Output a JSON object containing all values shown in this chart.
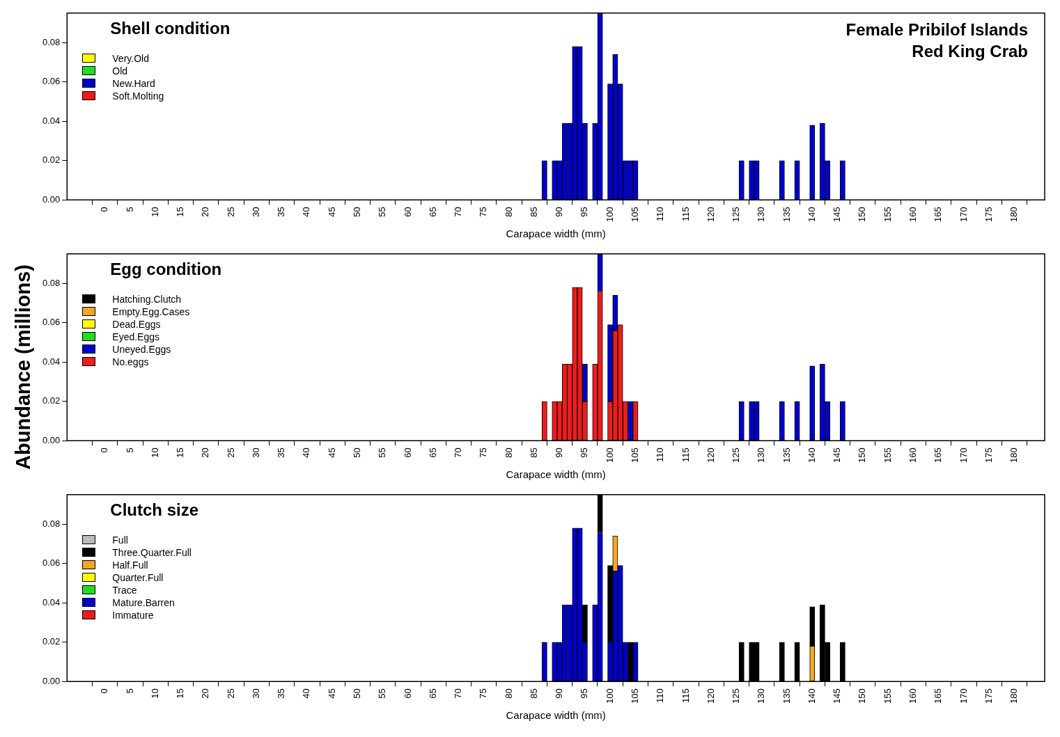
{
  "chart_data": [
    {
      "type": "bar",
      "title": "Shell condition",
      "xlabel": "Carapace width (mm)",
      "annotations": [
        "Female Pribilof Islands\nRed King Crab"
      ],
      "stacked": true,
      "legend": "top left",
      "grid": false,
      "x": [
        87,
        89,
        90,
        91,
        92,
        93,
        94,
        95,
        97,
        98,
        100,
        101,
        102,
        103,
        104,
        105,
        126,
        128,
        129,
        134,
        137,
        140,
        142,
        143,
        146
      ],
      "xlim": [
        -7.5,
        186
      ],
      "xticks": [
        0,
        5,
        10,
        15,
        20,
        25,
        30,
        35,
        40,
        45,
        50,
        55,
        60,
        65,
        70,
        75,
        80,
        85,
        90,
        95,
        100,
        105,
        110,
        115,
        120,
        125,
        130,
        135,
        140,
        145,
        150,
        155,
        160,
        165,
        170,
        175,
        180
      ],
      "ylim": [
        0,
        0.095
      ],
      "yticks": [
        {
          "value": 0,
          "label": "0.00"
        },
        {
          "value": 0.02,
          "label": "0.02"
        },
        {
          "value": 0.04,
          "label": "0.04"
        },
        {
          "value": 0.06,
          "label": "0.06"
        },
        {
          "value": 0.08,
          "label": "0.08"
        }
      ],
      "series": [
        {
          "name": "Soft.Molting",
          "color": "#ee1c1c",
          "values": [
            0,
            0,
            0,
            0,
            0,
            0,
            0,
            0,
            0,
            0,
            0,
            0,
            0,
            0,
            0,
            0,
            0,
            0,
            0,
            0,
            0,
            0,
            0,
            0,
            0
          ]
        },
        {
          "name": "New.Hard",
          "color": "#0000cd",
          "values": [
            0.02,
            0.02,
            0.02,
            0.039,
            0.039,
            0.078,
            0.078,
            0.039,
            0.039,
            0.095,
            0.059,
            0.074,
            0.059,
            0.02,
            0.02,
            0.02,
            0.02,
            0.02,
            0.02,
            0.02,
            0.02,
            0.038,
            0.039,
            0.02,
            0.02
          ]
        },
        {
          "name": "Old",
          "color": "#22dd22",
          "values": [
            0,
            0,
            0,
            0,
            0,
            0,
            0,
            0,
            0,
            0,
            0,
            0,
            0,
            0,
            0,
            0,
            0,
            0,
            0,
            0,
            0,
            0,
            0,
            0,
            0
          ]
        },
        {
          "name": "Very.Old",
          "color": "#ffff00",
          "values": [
            0,
            0,
            0,
            0,
            0,
            0,
            0,
            0,
            0,
            0,
            0,
            0,
            0,
            0,
            0,
            0,
            0,
            0,
            0,
            0,
            0,
            0,
            0,
            0,
            0
          ]
        }
      ]
    },
    {
      "type": "bar",
      "title": "Egg condition",
      "xlabel": "Carapace width (mm)",
      "ylabel": "Abundance (millions)",
      "stacked": true,
      "legend": "top left",
      "grid": false,
      "x": [
        87,
        89,
        90,
        91,
        92,
        93,
        94,
        95,
        97,
        98,
        100,
        101,
        102,
        103,
        104,
        105,
        126,
        128,
        129,
        134,
        137,
        140,
        142,
        143,
        146
      ],
      "xlim": [
        -7.5,
        186
      ],
      "xticks": [
        0,
        5,
        10,
        15,
        20,
        25,
        30,
        35,
        40,
        45,
        50,
        55,
        60,
        65,
        70,
        75,
        80,
        85,
        90,
        95,
        100,
        105,
        110,
        115,
        120,
        125,
        130,
        135,
        140,
        145,
        150,
        155,
        160,
        165,
        170,
        175,
        180
      ],
      "ylim": [
        0,
        0.095
      ],
      "yticks": [
        {
          "value": 0,
          "label": "0.00"
        },
        {
          "value": 0.02,
          "label": "0.02"
        },
        {
          "value": 0.04,
          "label": "0.04"
        },
        {
          "value": 0.06,
          "label": "0.06"
        },
        {
          "value": 0.08,
          "label": "0.08"
        }
      ],
      "series": [
        {
          "name": "No.eggs",
          "color": "#ee1c1c",
          "values": [
            0.02,
            0.02,
            0.02,
            0.039,
            0.039,
            0.078,
            0.078,
            0.02,
            0.039,
            0.076,
            0.02,
            0.056,
            0.059,
            0.02,
            0,
            0.02,
            0,
            0,
            0,
            0,
            0,
            0,
            0,
            0,
            0
          ]
        },
        {
          "name": "Uneyed.Eggs",
          "color": "#0000cd",
          "values": [
            0,
            0,
            0,
            0,
            0,
            0,
            0,
            0.019,
            0,
            0.019,
            0.039,
            0.018,
            0,
            0,
            0.02,
            0,
            0.02,
            0.02,
            0.02,
            0.02,
            0.02,
            0.038,
            0.039,
            0.02,
            0.02
          ]
        },
        {
          "name": "Eyed.Eggs",
          "color": "#22dd22",
          "values": [
            0,
            0,
            0,
            0,
            0,
            0,
            0,
            0,
            0,
            0,
            0,
            0,
            0,
            0,
            0,
            0,
            0,
            0,
            0,
            0,
            0,
            0,
            0,
            0,
            0
          ]
        },
        {
          "name": "Dead.Eggs",
          "color": "#ffff00",
          "values": [
            0,
            0,
            0,
            0,
            0,
            0,
            0,
            0,
            0,
            0,
            0,
            0,
            0,
            0,
            0,
            0,
            0,
            0,
            0,
            0,
            0,
            0,
            0,
            0,
            0
          ]
        },
        {
          "name": "Empty.Egg.Cases",
          "color": "#f5a623",
          "values": [
            0,
            0,
            0,
            0,
            0,
            0,
            0,
            0,
            0,
            0,
            0,
            0,
            0,
            0,
            0,
            0,
            0,
            0,
            0,
            0,
            0,
            0,
            0,
            0,
            0
          ]
        },
        {
          "name": "Hatching.Clutch",
          "color": "#000000",
          "values": [
            0,
            0,
            0,
            0,
            0,
            0,
            0,
            0,
            0,
            0,
            0,
            0,
            0,
            0,
            0,
            0,
            0,
            0,
            0,
            0,
            0,
            0,
            0,
            0,
            0
          ]
        }
      ]
    },
    {
      "type": "bar",
      "title": "Clutch size",
      "xlabel": "Carapace width (mm)",
      "stacked": true,
      "legend": "top left",
      "grid": false,
      "x": [
        87,
        89,
        90,
        91,
        92,
        93,
        94,
        95,
        97,
        98,
        100,
        101,
        102,
        103,
        104,
        105,
        126,
        128,
        129,
        134,
        137,
        140,
        142,
        143,
        146
      ],
      "xlim": [
        -7.5,
        186
      ],
      "xticks": [
        0,
        5,
        10,
        15,
        20,
        25,
        30,
        35,
        40,
        45,
        50,
        55,
        60,
        65,
        70,
        75,
        80,
        85,
        90,
        95,
        100,
        105,
        110,
        115,
        120,
        125,
        130,
        135,
        140,
        145,
        150,
        155,
        160,
        165,
        170,
        175,
        180
      ],
      "ylim": [
        0,
        0.095
      ],
      "yticks": [
        {
          "value": 0,
          "label": "0.00"
        },
        {
          "value": 0.02,
          "label": "0.02"
        },
        {
          "value": 0.04,
          "label": "0.04"
        },
        {
          "value": 0.06,
          "label": "0.06"
        },
        {
          "value": 0.08,
          "label": "0.08"
        }
      ],
      "series": [
        {
          "name": "Immature",
          "color": "#ee1c1c",
          "values": [
            0,
            0,
            0,
            0,
            0,
            0,
            0,
            0,
            0,
            0,
            0,
            0,
            0,
            0,
            0,
            0,
            0,
            0,
            0,
            0,
            0,
            0,
            0,
            0,
            0
          ]
        },
        {
          "name": "Mature.Barren",
          "color": "#0000cd",
          "values": [
            0.02,
            0.02,
            0.02,
            0.039,
            0.039,
            0.078,
            0.078,
            0.02,
            0.039,
            0.076,
            0.02,
            0.056,
            0.059,
            0.02,
            0,
            0.02,
            0,
            0,
            0,
            0,
            0,
            0,
            0,
            0,
            0
          ]
        },
        {
          "name": "Trace",
          "color": "#22dd22",
          "values": [
            0,
            0,
            0,
            0,
            0,
            0,
            0,
            0,
            0,
            0,
            0,
            0,
            0,
            0,
            0,
            0,
            0,
            0,
            0,
            0,
            0,
            0,
            0,
            0,
            0
          ]
        },
        {
          "name": "Quarter.Full",
          "color": "#ffff00",
          "values": [
            0,
            0,
            0,
            0,
            0,
            0,
            0,
            0,
            0,
            0,
            0,
            0,
            0,
            0,
            0,
            0,
            0,
            0,
            0,
            0,
            0,
            0,
            0,
            0,
            0
          ]
        },
        {
          "name": "Half.Full",
          "color": "#f5a623",
          "values": [
            0,
            0,
            0,
            0,
            0,
            0,
            0,
            0,
            0,
            0,
            0,
            0.018,
            0,
            0,
            0,
            0,
            0,
            0,
            0,
            0,
            0,
            0.018,
            0,
            0,
            0
          ]
        },
        {
          "name": "Three.Quarter.Full",
          "color": "#000000",
          "values": [
            0,
            0,
            0,
            0,
            0,
            0,
            0,
            0.019,
            0,
            0.019,
            0.039,
            0,
            0,
            0,
            0.02,
            0,
            0.02,
            0.02,
            0.02,
            0.02,
            0.02,
            0.02,
            0.039,
            0.02,
            0.02
          ]
        },
        {
          "name": "Full",
          "color": "#bbbbbb",
          "values": [
            0,
            0,
            0,
            0,
            0,
            0,
            0,
            0,
            0,
            0,
            0,
            0,
            0,
            0,
            0,
            0,
            0,
            0,
            0,
            0,
            0,
            0,
            0,
            0,
            0
          ]
        }
      ]
    }
  ]
}
